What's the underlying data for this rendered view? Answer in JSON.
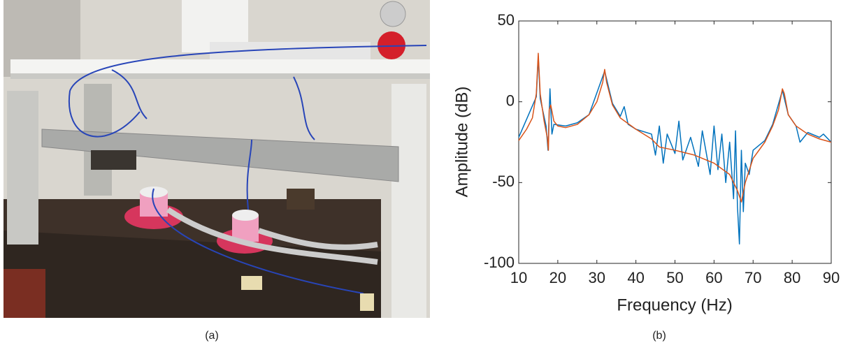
{
  "panels": [
    {
      "label": "(a)"
    },
    {
      "label": "(b)"
    }
  ],
  "chart_data": {
    "type": "line",
    "xlabel": "Frequency (Hz)",
    "ylabel": "Amplitude (dB)",
    "xlim": [
      10,
      90
    ],
    "xticks": [
      10,
      20,
      30,
      40,
      50,
      60,
      70,
      80,
      90
    ],
    "ylim": [
      -100,
      50
    ],
    "yticks": [
      -100,
      -50,
      0,
      50
    ],
    "grid": false,
    "series": [
      {
        "color": "#0072bd",
        "x": [
          10,
          14.5,
          15,
          15.5,
          17,
          17.5,
          18,
          18.5,
          19,
          22,
          25,
          28,
          32,
          34,
          36,
          37,
          38,
          40,
          44,
          45,
          46,
          47,
          48,
          50,
          51,
          52,
          54,
          56,
          57,
          59,
          60,
          61,
          62,
          63,
          64,
          65,
          65.5,
          66,
          66.5,
          67,
          67.5,
          68,
          69,
          70,
          73,
          75,
          77.5,
          79,
          81,
          82,
          84,
          87,
          88,
          90
        ],
        "values": [
          -22,
          3,
          28,
          2,
          -15,
          -30,
          8,
          -20,
          -14,
          -15,
          -13,
          -8,
          19,
          -1,
          -9,
          -3,
          -14,
          -17,
          -20,
          -33,
          -15,
          -38,
          -20,
          -32,
          -12,
          -36,
          -22,
          -40,
          -18,
          -45,
          -15,
          -42,
          -20,
          -50,
          -25,
          -60,
          -18,
          -65,
          -88,
          -30,
          -68,
          -38,
          -45,
          -30,
          -24,
          -14,
          7,
          -8,
          -15,
          -25,
          -19,
          -22,
          -20,
          -25
        ]
      },
      {
        "color": "#d95319",
        "x": [
          10,
          12,
          13.5,
          14.5,
          15,
          15.5,
          16.5,
          17.3,
          17.6,
          17.8,
          18.2,
          19,
          20,
          22,
          25,
          28,
          30,
          31.5,
          32,
          32.5,
          34,
          36,
          40,
          44,
          46,
          50,
          55,
          60,
          64,
          66,
          67,
          68,
          70,
          73,
          75,
          76.5,
          77.5,
          78,
          79,
          81,
          84,
          87,
          90
        ],
        "values": [
          -24,
          -17,
          -10,
          5,
          30,
          5,
          -12,
          -22,
          -30,
          -5,
          -2,
          -12,
          -15,
          -16,
          -14,
          -8,
          0,
          12,
          20,
          12,
          -2,
          -10,
          -17,
          -23,
          -28,
          -30,
          -33,
          -38,
          -45,
          -55,
          -62,
          -50,
          -35,
          -25,
          -15,
          -5,
          8,
          5,
          -8,
          -15,
          -20,
          -23,
          -25
        ]
      }
    ]
  }
}
